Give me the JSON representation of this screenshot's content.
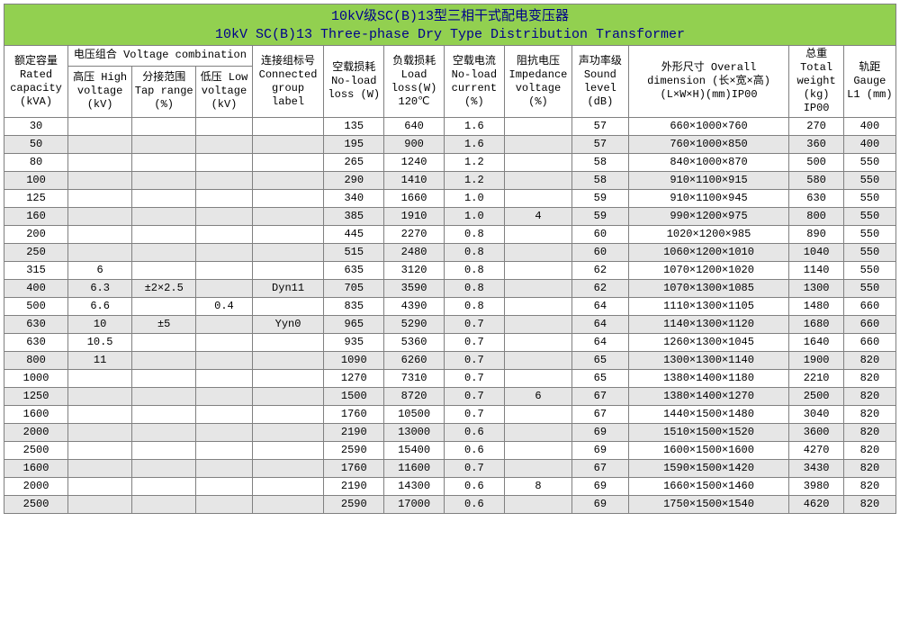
{
  "title_cn": "10kV级SC(B)13型三相干式配电变压器",
  "title_en": "10kV SC(B)13 Three-phase Dry Type Distribution Transformer",
  "colors": {
    "title_bg": "#92d050",
    "title_text": "#00008b",
    "alt_row_bg": "#e6e6e6",
    "border": "#808080"
  },
  "headers": {
    "capacity": "额定容量 Rated capacity (kVA)",
    "voltage_group": "电压组合 Voltage combination",
    "hv": "高压 High voltage (kV)",
    "tap": "分接范围 Tap range (%)",
    "lv": "低压 Low voltage (kV)",
    "group": "连接组标号 Connected group label",
    "noload_loss": "空载损耗 No-load loss (W)",
    "load_loss": "负载损耗 Load loss(W) 120℃",
    "noload_current": "空载电流 No-load current (%)",
    "impedance": "阻抗电压 Impedance voltage (%)",
    "sound": "声功率级 Sound level (dB)",
    "dimension": "外形尺寸 Overall dimension (长×宽×高) (L×W×H)(mm)IP00",
    "weight": "总重 Total weight (kg) IP00",
    "gauge": "轨距 Gauge L1 (mm)"
  },
  "merged": {
    "hv": [
      "6",
      "6.3",
      "6.6",
      "10",
      "10.5",
      "11"
    ],
    "tap": [
      "±2×2.5",
      "±5"
    ],
    "lv": [
      "0.4"
    ],
    "group": [
      "Dyn11",
      "Yyn0"
    ],
    "impedance": [
      "4",
      "6",
      "8"
    ]
  },
  "rows": [
    {
      "cap": "30",
      "nl": "135",
      "ll": "640",
      "nc": "1.6",
      "snd": "57",
      "dim": "660×1000×760",
      "wt": "270",
      "l1": "400"
    },
    {
      "cap": "50",
      "nl": "195",
      "ll": "900",
      "nc": "1.6",
      "snd": "57",
      "dim": "760×1000×850",
      "wt": "360",
      "l1": "400"
    },
    {
      "cap": "80",
      "nl": "265",
      "ll": "1240",
      "nc": "1.2",
      "snd": "58",
      "dim": "840×1000×870",
      "wt": "500",
      "l1": "550"
    },
    {
      "cap": "100",
      "nl": "290",
      "ll": "1410",
      "nc": "1.2",
      "snd": "58",
      "dim": "910×1100×915",
      "wt": "580",
      "l1": "550"
    },
    {
      "cap": "125",
      "nl": "340",
      "ll": "1660",
      "nc": "1.0",
      "snd": "59",
      "dim": "910×1100×945",
      "wt": "630",
      "l1": "550"
    },
    {
      "cap": "160",
      "nl": "385",
      "ll": "1910",
      "nc": "1.0",
      "snd": "59",
      "dim": "990×1200×975",
      "wt": "800",
      "l1": "550"
    },
    {
      "cap": "200",
      "nl": "445",
      "ll": "2270",
      "nc": "0.8",
      "snd": "60",
      "dim": "1020×1200×985",
      "wt": "890",
      "l1": "550"
    },
    {
      "cap": "250",
      "nl": "515",
      "ll": "2480",
      "nc": "0.8",
      "snd": "60",
      "dim": "1060×1200×1010",
      "wt": "1040",
      "l1": "550"
    },
    {
      "cap": "315",
      "nl": "635",
      "ll": "3120",
      "nc": "0.8",
      "snd": "62",
      "dim": "1070×1200×1020",
      "wt": "1140",
      "l1": "550"
    },
    {
      "cap": "400",
      "nl": "705",
      "ll": "3590",
      "nc": "0.8",
      "snd": "62",
      "dim": "1070×1300×1085",
      "wt": "1300",
      "l1": "550"
    },
    {
      "cap": "500",
      "nl": "835",
      "ll": "4390",
      "nc": "0.8",
      "snd": "64",
      "dim": "1110×1300×1105",
      "wt": "1480",
      "l1": "660"
    },
    {
      "cap": "630",
      "nl": "965",
      "ll": "5290",
      "nc": "0.7",
      "snd": "64",
      "dim": "1140×1300×1120",
      "wt": "1680",
      "l1": "660"
    },
    {
      "cap": "630",
      "nl": "935",
      "ll": "5360",
      "nc": "0.7",
      "snd": "64",
      "dim": "1260×1300×1045",
      "wt": "1640",
      "l1": "660"
    },
    {
      "cap": "800",
      "nl": "1090",
      "ll": "6260",
      "nc": "0.7",
      "snd": "65",
      "dim": "1300×1300×1140",
      "wt": "1900",
      "l1": "820"
    },
    {
      "cap": "1000",
      "nl": "1270",
      "ll": "7310",
      "nc": "0.7",
      "snd": "65",
      "dim": "1380×1400×1180",
      "wt": "2210",
      "l1": "820"
    },
    {
      "cap": "1250",
      "nl": "1500",
      "ll": "8720",
      "nc": "0.7",
      "snd": "67",
      "dim": "1380×1400×1270",
      "wt": "2500",
      "l1": "820"
    },
    {
      "cap": "1600",
      "nl": "1760",
      "ll": "10500",
      "nc": "0.7",
      "snd": "67",
      "dim": "1440×1500×1480",
      "wt": "3040",
      "l1": "820"
    },
    {
      "cap": "2000",
      "nl": "2190",
      "ll": "13000",
      "nc": "0.6",
      "snd": "69",
      "dim": "1510×1500×1520",
      "wt": "3600",
      "l1": "820"
    },
    {
      "cap": "2500",
      "nl": "2590",
      "ll": "15400",
      "nc": "0.6",
      "snd": "69",
      "dim": "1600×1500×1600",
      "wt": "4270",
      "l1": "820"
    },
    {
      "cap": "1600",
      "nl": "1760",
      "ll": "11600",
      "nc": "0.7",
      "snd": "67",
      "dim": "1590×1500×1420",
      "wt": "3430",
      "l1": "820"
    },
    {
      "cap": "2000",
      "nl": "2190",
      "ll": "14300",
      "nc": "0.6",
      "snd": "69",
      "dim": "1660×1500×1460",
      "wt": "3980",
      "l1": "820"
    },
    {
      "cap": "2500",
      "nl": "2590",
      "ll": "17000",
      "nc": "0.6",
      "snd": "69",
      "dim": "1750×1500×1540",
      "wt": "4620",
      "l1": "820"
    }
  ],
  "placement": {
    "hv": [
      8,
      9,
      10,
      11,
      12,
      13
    ],
    "tap": [
      9,
      11
    ],
    "lv": [
      10
    ],
    "group": [
      9,
      11
    ],
    "impedance": [
      5,
      15,
      20
    ]
  }
}
